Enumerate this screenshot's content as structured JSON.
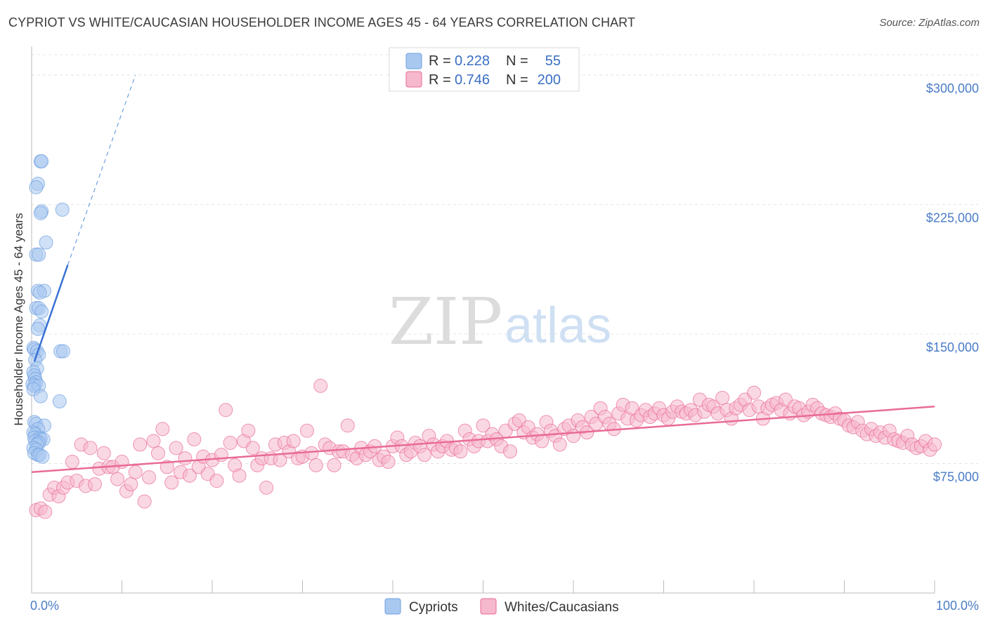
{
  "title": "CYPRIOT VS WHITE/CAUCASIAN HOUSEHOLDER INCOME AGES 45 - 64 YEARS CORRELATION CHART",
  "source": "Source: ZipAtlas.com",
  "watermark": {
    "zip": "ZIP",
    "atlas": "atlas"
  },
  "legend": {
    "r_label": "R =",
    "n_label": "N =",
    "rows": [
      {
        "r": "0.228",
        "n": "55",
        "color": "#a9c8f0"
      },
      {
        "r": "0.746",
        "n": "200",
        "color": "#f6b8cc"
      }
    ]
  },
  "bottom_legend": {
    "items": [
      "Cypriots",
      "Whites/Caucasians"
    ]
  },
  "chart_data": {
    "type": "scatter",
    "title": "CYPRIOT VS WHITE/CAUCASIAN HOUSEHOLDER INCOME AGES 45 - 64 YEARS CORRELATION CHART",
    "ylabel": "Householder Income Ages 45 - 64 years",
    "xlabel": "",
    "xlim": [
      0,
      100
    ],
    "ylim": [
      0,
      315000
    ],
    "x_tick_labels": [
      "0.0%",
      "100.0%"
    ],
    "y_ticks": [
      {
        "value": 75000,
        "label": "$75,000"
      },
      {
        "value": 150000,
        "label": "$150,000"
      },
      {
        "value": 225000,
        "label": "$225,000"
      },
      {
        "value": 300000,
        "label": "$300,000"
      }
    ],
    "grid": true,
    "series": [
      {
        "name": "Cypriots",
        "color": "#6ea0e0",
        "fill": "#a9c8f0",
        "r": 0.228,
        "n": 55,
        "trend": {
          "x": [
            0.3,
            4.0
          ],
          "y": [
            134000,
            190000
          ],
          "dash_to": [
            11.5,
            300000
          ]
        },
        "points": [
          [
            1.0,
            250000
          ],
          [
            1.1,
            250000
          ],
          [
            0.7,
            237000
          ],
          [
            0.5,
            235000
          ],
          [
            1.1,
            221000
          ],
          [
            1.0,
            220000
          ],
          [
            3.4,
            222000
          ],
          [
            1.6,
            203000
          ],
          [
            0.5,
            196000
          ],
          [
            0.8,
            196000
          ],
          [
            0.7,
            175000
          ],
          [
            1.4,
            175000
          ],
          [
            0.9,
            174000
          ],
          [
            0.5,
            165000
          ],
          [
            0.8,
            165000
          ],
          [
            1.1,
            163000
          ],
          [
            0.9,
            155000
          ],
          [
            0.7,
            153000
          ],
          [
            0.2,
            142000
          ],
          [
            0.3,
            141000
          ],
          [
            0.6,
            140000
          ],
          [
            3.2,
            140000
          ],
          [
            3.5,
            140000
          ],
          [
            0.8,
            138000
          ],
          [
            0.4,
            135000
          ],
          [
            0.6,
            130000
          ],
          [
            0.2,
            128000
          ],
          [
            0.3,
            126000
          ],
          [
            0.4,
            124000
          ],
          [
            0.5,
            122000
          ],
          [
            0.1,
            121000
          ],
          [
            0.3,
            120000
          ],
          [
            0.8,
            120000
          ],
          [
            0.2,
            118000
          ],
          [
            1.0,
            114000
          ],
          [
            3.1,
            111000
          ],
          [
            0.3,
            99000
          ],
          [
            0.5,
            98000
          ],
          [
            1.4,
            97000
          ],
          [
            0.7,
            95000
          ],
          [
            0.2,
            93000
          ],
          [
            0.4,
            92000
          ],
          [
            0.3,
            90000
          ],
          [
            0.9,
            90000
          ],
          [
            1.0,
            89000
          ],
          [
            1.3,
            89000
          ],
          [
            0.4,
            88000
          ],
          [
            0.8,
            87000
          ],
          [
            0.6,
            86000
          ],
          [
            0.2,
            84000
          ],
          [
            0.5,
            83000
          ],
          [
            0.3,
            81000
          ],
          [
            0.7,
            80000
          ],
          [
            0.9,
            80000
          ],
          [
            1.2,
            79000
          ]
        ]
      },
      {
        "name": "Whites/Caucasians",
        "color": "#e96b96",
        "fill": "#f6b8cc",
        "r": 0.746,
        "n": 200,
        "trend": {
          "x": [
            0,
            100
          ],
          "y": [
            70000,
            108000
          ]
        },
        "points": [
          [
            0.5,
            48000
          ],
          [
            1.0,
            49000
          ],
          [
            1.5,
            47000
          ],
          [
            2.0,
            57000
          ],
          [
            2.5,
            61000
          ],
          [
            3.0,
            56000
          ],
          [
            3.5,
            61000
          ],
          [
            4.0,
            64000
          ],
          [
            4.5,
            76000
          ],
          [
            5.0,
            65000
          ],
          [
            5.5,
            86000
          ],
          [
            6.0,
            62000
          ],
          [
            6.5,
            84000
          ],
          [
            7.0,
            63000
          ],
          [
            7.5,
            72000
          ],
          [
            8.0,
            81000
          ],
          [
            8.5,
            73000
          ],
          [
            9.0,
            73000
          ],
          [
            9.5,
            66000
          ],
          [
            10.0,
            76000
          ],
          [
            10.5,
            59000
          ],
          [
            11.0,
            63000
          ],
          [
            11.5,
            70000
          ],
          [
            12.0,
            86000
          ],
          [
            12.5,
            53000
          ],
          [
            13.0,
            67000
          ],
          [
            13.5,
            88000
          ],
          [
            14.0,
            81000
          ],
          [
            14.5,
            95000
          ],
          [
            15.0,
            73000
          ],
          [
            15.5,
            64000
          ],
          [
            16.0,
            84000
          ],
          [
            16.5,
            70000
          ],
          [
            17.0,
            78000
          ],
          [
            17.5,
            68000
          ],
          [
            18.0,
            89000
          ],
          [
            18.5,
            73000
          ],
          [
            19.0,
            79000
          ],
          [
            19.5,
            69000
          ],
          [
            20.0,
            77000
          ],
          [
            20.5,
            65000
          ],
          [
            21.0,
            80000
          ],
          [
            21.5,
            106000
          ],
          [
            22.0,
            87000
          ],
          [
            22.5,
            74000
          ],
          [
            23.0,
            68000
          ],
          [
            23.5,
            88000
          ],
          [
            24.0,
            94000
          ],
          [
            24.5,
            84000
          ],
          [
            25.0,
            74000
          ],
          [
            25.5,
            78000
          ],
          [
            26.0,
            61000
          ],
          [
            26.5,
            78000
          ],
          [
            27.0,
            86000
          ],
          [
            27.5,
            77000
          ],
          [
            28.0,
            87000
          ],
          [
            28.5,
            82000
          ],
          [
            29.0,
            88000
          ],
          [
            29.5,
            78000
          ],
          [
            30.0,
            79000
          ],
          [
            30.5,
            94000
          ],
          [
            31.0,
            81000
          ],
          [
            31.5,
            74000
          ],
          [
            32.0,
            120000
          ],
          [
            32.5,
            86000
          ],
          [
            33.0,
            84000
          ],
          [
            33.5,
            74000
          ],
          [
            34.0,
            82000
          ],
          [
            34.5,
            82000
          ],
          [
            35.0,
            97000
          ],
          [
            35.5,
            80000
          ],
          [
            36.0,
            78000
          ],
          [
            36.5,
            84000
          ],
          [
            37.0,
            80000
          ],
          [
            37.5,
            82000
          ],
          [
            38.0,
            85000
          ],
          [
            38.5,
            77000
          ],
          [
            39.0,
            79000
          ],
          [
            39.5,
            76000
          ],
          [
            40.0,
            85000
          ],
          [
            40.5,
            90000
          ],
          [
            41.0,
            85000
          ],
          [
            41.5,
            80000
          ],
          [
            42.0,
            82000
          ],
          [
            42.5,
            87000
          ],
          [
            43.0,
            85000
          ],
          [
            43.5,
            80000
          ],
          [
            44.0,
            91000
          ],
          [
            44.5,
            86000
          ],
          [
            45.0,
            82000
          ],
          [
            45.5,
            85000
          ],
          [
            46.0,
            88000
          ],
          [
            46.5,
            83000
          ],
          [
            47.0,
            84000
          ],
          [
            47.5,
            82000
          ],
          [
            48.0,
            94000
          ],
          [
            48.5,
            89000
          ],
          [
            49.0,
            85000
          ],
          [
            49.5,
            88000
          ],
          [
            50.0,
            97000
          ],
          [
            50.5,
            88000
          ],
          [
            51.0,
            92000
          ],
          [
            51.5,
            89000
          ],
          [
            52.0,
            85000
          ],
          [
            52.5,
            94000
          ],
          [
            53.0,
            82000
          ],
          [
            53.5,
            98000
          ],
          [
            54.0,
            100000
          ],
          [
            54.5,
            93000
          ],
          [
            55.0,
            96000
          ],
          [
            55.5,
            90000
          ],
          [
            56.0,
            92000
          ],
          [
            56.5,
            88000
          ],
          [
            57.0,
            99000
          ],
          [
            57.5,
            94000
          ],
          [
            58.0,
            91000
          ],
          [
            58.5,
            86000
          ],
          [
            59.0,
            95000
          ],
          [
            59.5,
            97000
          ],
          [
            60.0,
            91000
          ],
          [
            60.5,
            100000
          ],
          [
            61.0,
            96000
          ],
          [
            61.5,
            93000
          ],
          [
            62.0,
            102000
          ],
          [
            62.5,
            98000
          ],
          [
            63.0,
            107000
          ],
          [
            63.5,
            102000
          ],
          [
            64.0,
            98000
          ],
          [
            64.5,
            95000
          ],
          [
            65.0,
            104000
          ],
          [
            65.5,
            109000
          ],
          [
            66.0,
            101000
          ],
          [
            66.5,
            107000
          ],
          [
            67.0,
            100000
          ],
          [
            67.5,
            103000
          ],
          [
            68.0,
            106000
          ],
          [
            68.5,
            102000
          ],
          [
            69.0,
            104000
          ],
          [
            69.5,
            107000
          ],
          [
            70.0,
            103000
          ],
          [
            70.5,
            101000
          ],
          [
            71.0,
            105000
          ],
          [
            71.5,
            108000
          ],
          [
            72.0,
            105000
          ],
          [
            72.5,
            104000
          ],
          [
            73.0,
            106000
          ],
          [
            73.5,
            103000
          ],
          [
            74.0,
            112000
          ],
          [
            74.5,
            105000
          ],
          [
            75.0,
            109000
          ],
          [
            75.5,
            108000
          ],
          [
            76.0,
            104000
          ],
          [
            76.5,
            113000
          ],
          [
            77.0,
            106000
          ],
          [
            77.5,
            101000
          ],
          [
            78.0,
            107000
          ],
          [
            78.5,
            109000
          ],
          [
            79.0,
            112000
          ],
          [
            79.5,
            106000
          ],
          [
            80.0,
            116000
          ],
          [
            80.5,
            108000
          ],
          [
            81.0,
            101000
          ],
          [
            81.5,
            107000
          ],
          [
            82.0,
            109000
          ],
          [
            82.5,
            110000
          ],
          [
            83.0,
            106000
          ],
          [
            83.5,
            112000
          ],
          [
            84.0,
            104000
          ],
          [
            84.5,
            108000
          ],
          [
            85.0,
            107000
          ],
          [
            85.5,
            103000
          ],
          [
            86.0,
            105000
          ],
          [
            86.5,
            109000
          ],
          [
            87.0,
            107000
          ],
          [
            87.5,
            104000
          ],
          [
            88.0,
            103000
          ],
          [
            88.5,
            102000
          ],
          [
            89.0,
            104000
          ],
          [
            89.5,
            101000
          ],
          [
            90.0,
            100000
          ],
          [
            90.5,
            97000
          ],
          [
            91.0,
            96000
          ],
          [
            91.5,
            99000
          ],
          [
            92.0,
            94000
          ],
          [
            92.5,
            92000
          ],
          [
            93.0,
            95000
          ],
          [
            93.5,
            91000
          ],
          [
            94.0,
            93000
          ],
          [
            94.5,
            90000
          ],
          [
            95.0,
            94000
          ],
          [
            95.5,
            89000
          ],
          [
            96.0,
            88000
          ],
          [
            96.5,
            87000
          ],
          [
            97.0,
            91000
          ],
          [
            97.5,
            86000
          ],
          [
            98.0,
            84000
          ],
          [
            98.5,
            85000
          ],
          [
            99.0,
            88000
          ],
          [
            99.5,
            83000
          ],
          [
            100.0,
            86000
          ]
        ]
      }
    ]
  }
}
